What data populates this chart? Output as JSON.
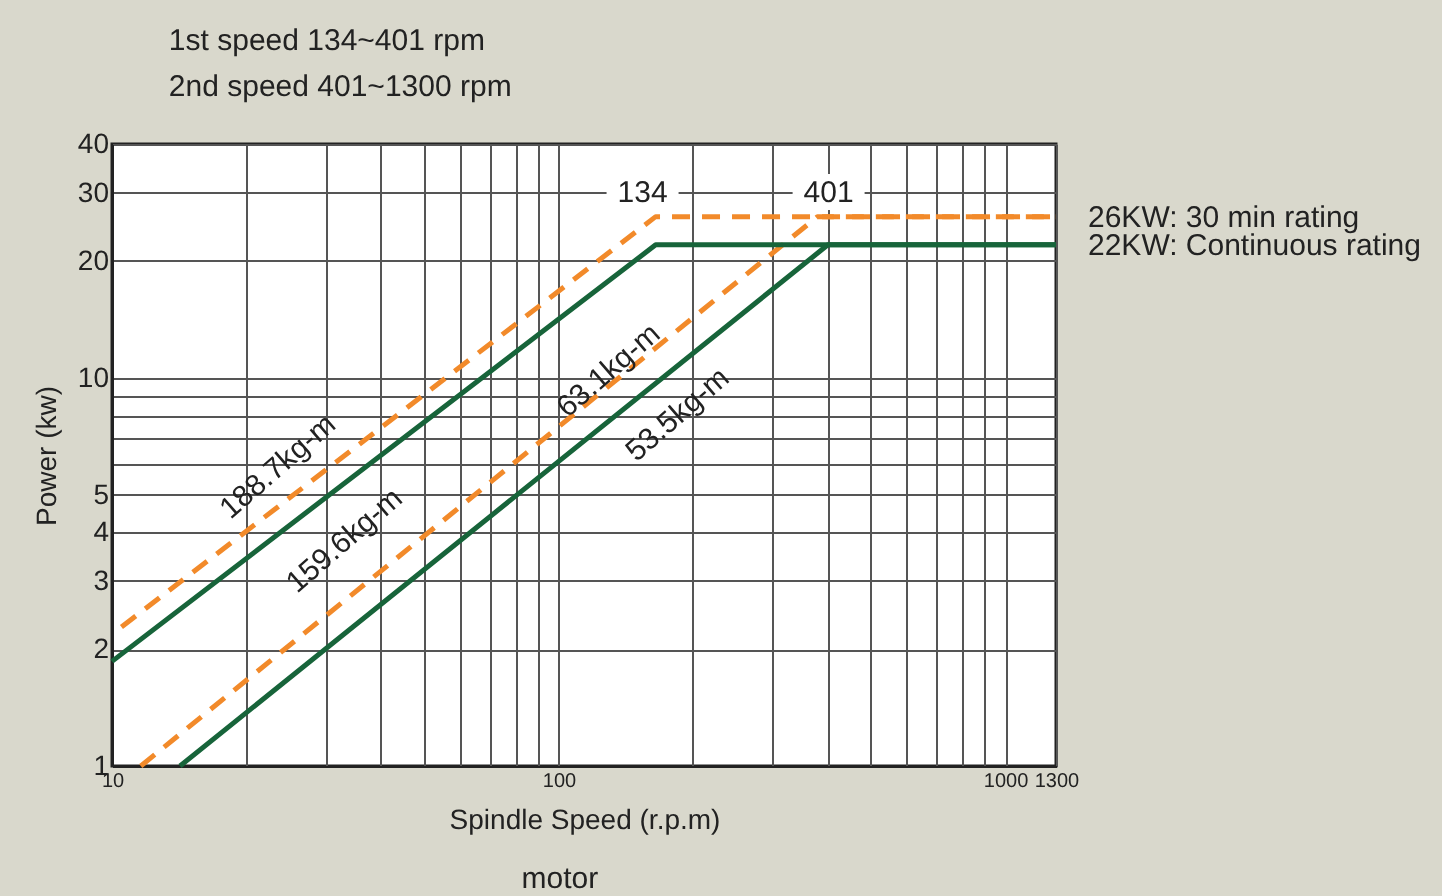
{
  "chart_data": {
    "type": "line",
    "title": "1st speed 134~401 rpm",
    "subtitle": "2nd speed 401~1300 rpm",
    "xlabel": "Spindle Speed (r.p.m)",
    "ylabel": "Power (kw)",
    "log": "xy",
    "grid": true,
    "xlim": [
      10,
      1300
    ],
    "ylim": [
      1,
      40
    ],
    "xticks": [
      10,
      {
        "value": 20,
        "label": null
      },
      {
        "value": 30,
        "label": null
      },
      {
        "value": 40,
        "label": null
      },
      {
        "value": 50,
        "label": null
      },
      {
        "value": 60,
        "label": null
      },
      {
        "value": 70,
        "label": null
      },
      {
        "value": 80,
        "label": null
      },
      {
        "value": 90,
        "label": null
      },
      100,
      {
        "value": 200,
        "label": null
      },
      {
        "value": 300,
        "label": null
      },
      {
        "value": 400,
        "label": null
      },
      {
        "value": 500,
        "label": null
      },
      {
        "value": 600,
        "label": null
      },
      {
        "value": 700,
        "label": null
      },
      {
        "value": 800,
        "label": null
      },
      {
        "value": 900,
        "label": null
      },
      1000,
      1300
    ],
    "yticks": [
      1,
      2,
      3,
      4,
      5,
      {
        "value": 6,
        "label": null
      },
      {
        "value": 7,
        "label": null
      },
      {
        "value": 8,
        "label": null
      },
      {
        "value": 9,
        "label": null
      },
      10,
      20,
      30,
      40
    ],
    "series": [
      {
        "name": "26KW: 30 min rating",
        "color": "#f28a2a",
        "line_style": "dashed",
        "x": [
          10.5,
          165,
          1300
        ],
        "values": [
          2.28,
          26,
          26
        ]
      },
      {
        "color": "#f28a2a",
        "line_style": "dashed",
        "x": [
          11.6,
          380,
          1300
        ],
        "values": [
          1,
          26,
          26
        ]
      },
      {
        "name": "22KW: Continuous rating",
        "color": "#17643a",
        "line_style": "solid",
        "x": [
          10,
          165,
          1300
        ],
        "values": [
          1.86,
          22,
          22
        ]
      },
      {
        "color": "#17643a",
        "line_style": "solid",
        "x": [
          14.2,
          401,
          1300
        ],
        "values": [
          1,
          22,
          22
        ]
      }
    ],
    "annotations": [
      "134",
      "401",
      "188.7kg-m",
      "159.6kg-m",
      "63.1kg-m",
      "53.5kg-m",
      "motor"
    ]
  }
}
